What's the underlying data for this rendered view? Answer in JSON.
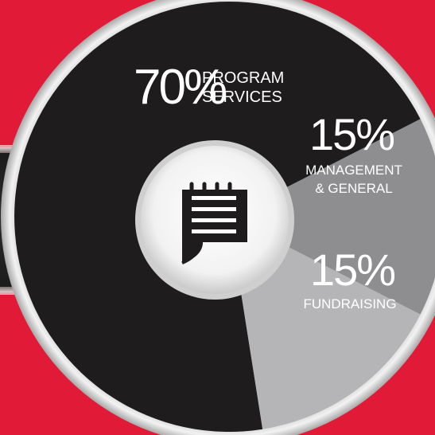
{
  "chart_data": {
    "type": "pie",
    "variant": "donut",
    "slices": [
      {
        "pct_label": "70%",
        "label_lines": [
          "PROGRAM",
          "SERVICES"
        ],
        "value": 70,
        "color": "#1e1c1d"
      },
      {
        "pct_label": "15%",
        "label_lines": [
          "MANAGEMENT",
          "& GENERAL"
        ],
        "value": 15,
        "color": "#8e8e90"
      },
      {
        "pct_label": "15%",
        "label_lines": [
          "FUNDRAISING"
        ],
        "value": 15,
        "color": "#b5b5b7"
      }
    ]
  },
  "center_icon": "notepad-icon",
  "colors": {
    "background": "#e11b37",
    "band": "#222222",
    "ring": "#e6e6e6"
  }
}
